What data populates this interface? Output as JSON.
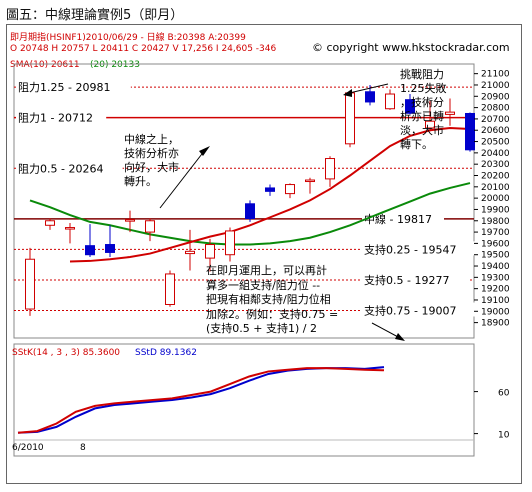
{
  "title": "圖五：中線理論實例5（即月）",
  "header": {
    "line1": "即月期指(HSINF1)2010/06/29  - 日線 B:20398 A:20399",
    "line2": "O 20748 H 20757 L 20411 C 20427 V 17,256 I 24,605 -346",
    "sma_label": "SMA(10) 20611",
    "sma2_label": "(20) 20133",
    "copyright": "copyright www.hkstockradar.com",
    "copyright_symbol": "©"
  },
  "levels": [
    {
      "label": "阻力1.25 - 20981",
      "value": 20981,
      "color": "#d00000",
      "style": "dotted"
    },
    {
      "label": "阻力1 - 20712",
      "value": 20712,
      "color": "#d00000",
      "style": "solid"
    },
    {
      "label": "阻力0.5 - 20264",
      "value": 20264,
      "color": "#d00000",
      "style": "dotted"
    },
    {
      "label": "中線 - 19817",
      "value": 19817,
      "color": "#800000",
      "style": "solid"
    },
    {
      "label": "支持0.25 - 19547",
      "value": 19547,
      "color": "#d00000",
      "style": "dotted"
    },
    {
      "label": "支持0.5 - 19277",
      "value": 19277,
      "color": "#d00000",
      "style": "dotted"
    },
    {
      "label": "支持0.75 - 19007",
      "value": 19007,
      "color": "#d00000",
      "style": "dotted"
    }
  ],
  "annotations": {
    "top_right": [
      "挑戰阻力",
      "1.25失敗",
      "，技術分",
      "析亦已轉",
      "淡，大市",
      "轉下。"
    ],
    "middle": [
      "中線之上，",
      "技術分析亦",
      "向好，大市",
      "轉升。"
    ],
    "bottom": [
      "在即月運用上，可以再計",
      "算多一組支持/阻力位 --",
      "把現有相鄰支持/阻力位相",
      "加除2。例如：支持0.75 =",
      "(支持0.5 + 支持1) / 2"
    ]
  },
  "stoch": {
    "label_k": "SStK(14 , 3 , 3) 85.3600",
    "label_d": "SStD  89.1362",
    "ticks": [
      "60",
      "10"
    ]
  },
  "x_labels": [
    "6/2010",
    "8"
  ],
  "colors": {
    "up": "#d00000",
    "down": "#0000cc",
    "sma10": "#d00000",
    "sma20": "#0a8a0a"
  },
  "chart_data": {
    "type": "candlestick",
    "y_ticks": [
      18900,
      19000,
      19100,
      19200,
      19300,
      19400,
      19500,
      19600,
      19700,
      19800,
      19900,
      20000,
      20100,
      20200,
      20300,
      20400,
      20500,
      20600,
      20700,
      20800,
      20900,
      21000,
      21100
    ],
    "ylim": [
      18870,
      21150
    ],
    "candles": [
      {
        "o": 19020,
        "h": 19560,
        "l": 18960,
        "c": 19460
      },
      {
        "o": 19760,
        "h": 19820,
        "l": 19720,
        "c": 19800
      },
      {
        "o": 19730,
        "h": 19780,
        "l": 19600,
        "c": 19740
      },
      {
        "o": 19580,
        "h": 19770,
        "l": 19480,
        "c": 19500
      },
      {
        "o": 19590,
        "h": 19760,
        "l": 19480,
        "c": 19520
      },
      {
        "o": 19800,
        "h": 19890,
        "l": 19700,
        "c": 19810
      },
      {
        "o": 19700,
        "h": 19820,
        "l": 19620,
        "c": 19800
      },
      {
        "o": 19060,
        "h": 19360,
        "l": 19040,
        "c": 19330
      },
      {
        "o": 19510,
        "h": 19720,
        "l": 19360,
        "c": 19530
      },
      {
        "o": 19470,
        "h": 19640,
        "l": 19350,
        "c": 19590
      },
      {
        "o": 19500,
        "h": 19740,
        "l": 19440,
        "c": 19710
      },
      {
        "o": 19950,
        "h": 19980,
        "l": 19790,
        "c": 19820
      },
      {
        "o": 20090,
        "h": 20120,
        "l": 20020,
        "c": 20060
      },
      {
        "o": 20040,
        "h": 20130,
        "l": 20000,
        "c": 20120
      },
      {
        "o": 20150,
        "h": 20180,
        "l": 20040,
        "c": 20160
      },
      {
        "o": 20170,
        "h": 20370,
        "l": 20100,
        "c": 20350
      },
      {
        "o": 20480,
        "h": 20950,
        "l": 20450,
        "c": 20930
      },
      {
        "o": 20940,
        "h": 21000,
        "l": 20820,
        "c": 20850
      },
      {
        "o": 20790,
        "h": 20960,
        "l": 20780,
        "c": 20920
      },
      {
        "o": 20870,
        "h": 20920,
        "l": 20740,
        "c": 20750
      },
      {
        "o": 20620,
        "h": 20860,
        "l": 20590,
        "c": 20680
      },
      {
        "o": 20740,
        "h": 20880,
        "l": 20640,
        "c": 20760
      },
      {
        "o": 20748,
        "h": 20757,
        "l": 20411,
        "c": 20427
      }
    ],
    "sma10": [
      19440,
      19445,
      19460,
      19480,
      19510,
      19560,
      19610,
      19660,
      19700,
      19760,
      19830,
      19900,
      19980,
      20080,
      20200,
      20330,
      20460,
      20550,
      20600,
      20620,
      20611
    ],
    "sma20": [
      19980,
      19920,
      19850,
      19790,
      19760,
      19720,
      19680,
      19650,
      19620,
      19600,
      19590,
      19590,
      19600,
      19620,
      19650,
      19700,
      19760,
      19830,
      19900,
      19970,
      20040,
      20090,
      20133
    ],
    "stoch_k": [
      11,
      13,
      22,
      36,
      43,
      46,
      48,
      50,
      52,
      56,
      60,
      69,
      78,
      84,
      86,
      88,
      88,
      87,
      86,
      85.36
    ],
    "stoch_d": [
      11,
      12,
      18,
      30,
      40,
      44,
      46,
      48,
      50,
      53,
      57,
      64,
      73,
      81,
      85,
      87,
      88,
      88,
      87,
      89.14
    ]
  }
}
